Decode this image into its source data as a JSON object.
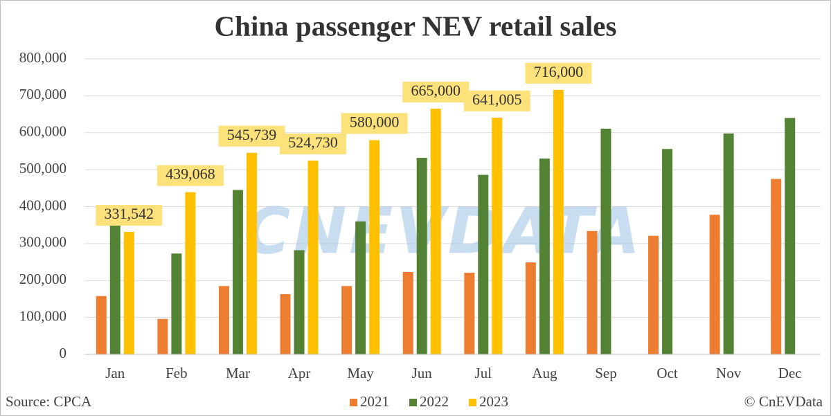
{
  "chart_data": {
    "type": "bar",
    "title": "China passenger NEV retail sales",
    "watermark": "CNEVDATA",
    "source": "Source: CPCA",
    "credit": "© CnEVData",
    "categories": [
      "Jan",
      "Feb",
      "Mar",
      "Apr",
      "May",
      "Jun",
      "Jul",
      "Aug",
      "Sep",
      "Oct",
      "Nov",
      "Dec"
    ],
    "series": [
      {
        "name": "2021",
        "color": "#ed7d31",
        "values": [
          158000,
          96000,
          185000,
          163000,
          185000,
          223000,
          221000,
          249000,
          334000,
          321000,
          378000,
          475000
        ]
      },
      {
        "name": "2022",
        "color": "#548235",
        "values": [
          350000,
          273000,
          445000,
          282000,
          360000,
          532000,
          486000,
          530000,
          611000,
          556000,
          598000,
          640000
        ]
      },
      {
        "name": "2023",
        "color": "#ffc000",
        "values": [
          331542,
          439068,
          545739,
          524730,
          580000,
          665000,
          641005,
          716000,
          null,
          null,
          null,
          null
        ],
        "value_labels": [
          "331,542",
          "439,068",
          "545,739",
          "524,730",
          "580,000",
          "665,000",
          "641,005",
          "716,000",
          null,
          null,
          null,
          null
        ]
      }
    ],
    "ylim": [
      0,
      800000
    ],
    "yticks": [
      0,
      {
        "value": 100000,
        "label": "100,000"
      },
      {
        "value": 200000,
        "label": "200,000"
      },
      {
        "value": 300000,
        "label": "300,000"
      },
      {
        "value": 400000,
        "label": "400,000"
      },
      {
        "value": 500000,
        "label": "500,000"
      },
      {
        "value": 600000,
        "label": "600,000"
      },
      {
        "value": 700000,
        "label": "700,000"
      },
      {
        "value": 800000,
        "label": "800,000"
      }
    ],
    "grid": true,
    "legend": "bottom"
  }
}
